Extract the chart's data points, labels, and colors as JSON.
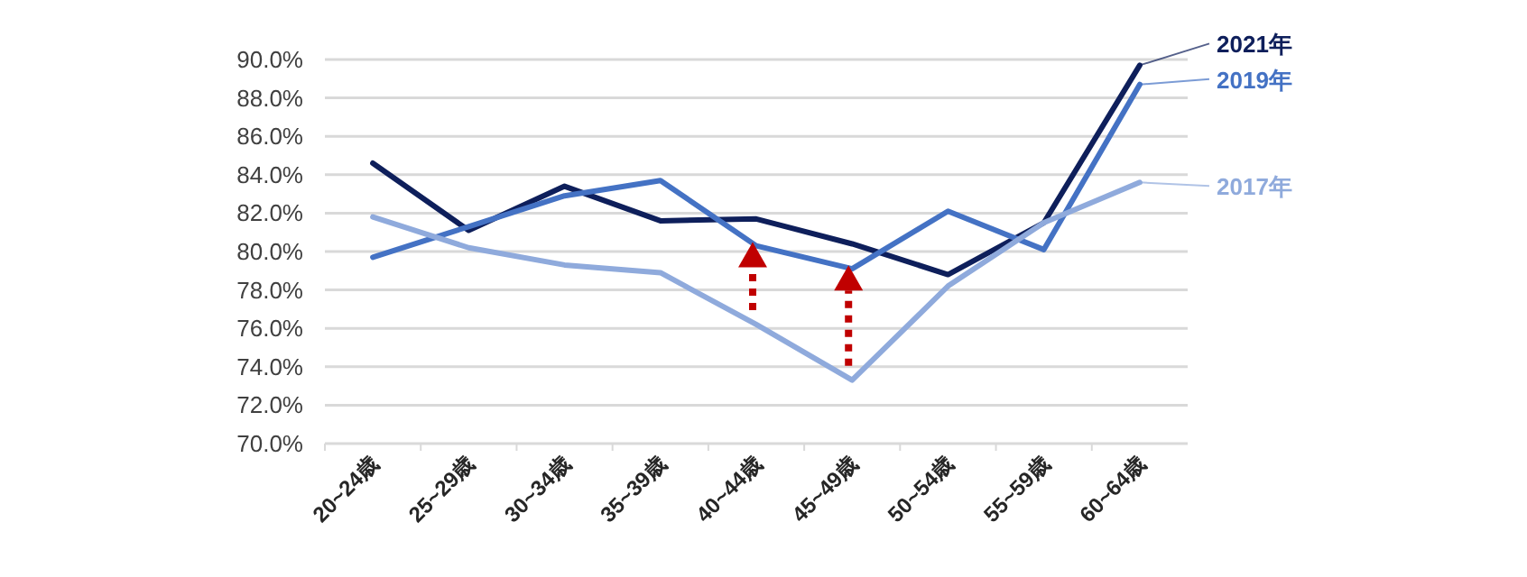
{
  "chart_data": {
    "type": "line",
    "categories": [
      "20~24歳",
      "25~29歳",
      "30~34歳",
      "35~39歳",
      "40~44歳",
      "45~49歳",
      "50~54歳",
      "55~59歳",
      "60~64歳"
    ],
    "series": [
      {
        "name": "2021年",
        "color": "#0e1f5b",
        "values": [
          84.6,
          81.1,
          83.4,
          81.6,
          81.7,
          80.4,
          78.8,
          81.5,
          89.7
        ]
      },
      {
        "name": "2019年",
        "color": "#4472c4",
        "values": [
          79.7,
          81.3,
          82.9,
          83.7,
          80.3,
          79.1,
          82.1,
          80.1,
          88.7
        ]
      },
      {
        "name": "2017年",
        "color": "#8faadc",
        "values": [
          81.8,
          80.2,
          79.3,
          78.9,
          76.2,
          73.3,
          78.2,
          81.5,
          83.6
        ]
      }
    ],
    "ylim": [
      70,
      90
    ],
    "yticks": [
      {
        "value": 70,
        "label": "70.0%"
      },
      {
        "value": 72,
        "label": "72.0%"
      },
      {
        "value": 74,
        "label": "74.0%"
      },
      {
        "value": 76,
        "label": "76.0%"
      },
      {
        "value": 78,
        "label": "78.0%"
      },
      {
        "value": 80,
        "label": "80.0%"
      },
      {
        "value": 82,
        "label": "82.0%"
      },
      {
        "value": 84,
        "label": "84.0%"
      },
      {
        "value": 86,
        "label": "86.0%"
      },
      {
        "value": 88,
        "label": "88.0%"
      },
      {
        "value": 90,
        "label": "90.0%"
      }
    ],
    "grid": "y",
    "legend": "right",
    "marker": "none",
    "line_style": "solid"
  }
}
